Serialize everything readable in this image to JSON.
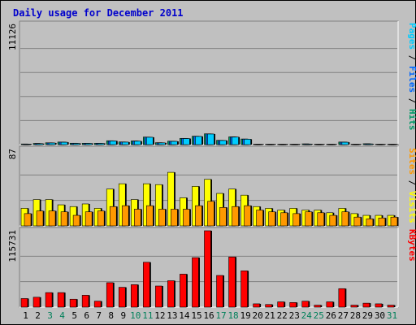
{
  "chart_data": {
    "type": "bar",
    "title": "Daily usage for December 2011",
    "categories": [
      "1",
      "2",
      "3",
      "4",
      "5",
      "6",
      "7",
      "8",
      "9",
      "10",
      "11",
      "12",
      "13",
      "14",
      "15",
      "16",
      "17",
      "18",
      "19",
      "20",
      "21",
      "22",
      "23",
      "24",
      "25",
      "26",
      "27",
      "28",
      "29",
      "30",
      "31"
    ],
    "weekend_days": [
      "3",
      "4",
      "10",
      "11",
      "17",
      "18",
      "24",
      "25",
      "31"
    ],
    "panels": [
      {
        "id": "top",
        "max_label": "11126",
        "ylim": [
          0,
          11126
        ],
        "right_label_parts": [
          "Pages",
          " / ",
          "Files",
          " / ",
          "Hits"
        ],
        "right_label_colors": [
          "#00ccff",
          "#000000",
          "#0066ff",
          "#000000",
          "#009966"
        ],
        "series": [
          {
            "name": "Hits",
            "color": "#009966",
            "values": [
              60,
              110,
              170,
              240,
              130,
              120,
              120,
              360,
              250,
              340,
              700,
              180,
              320,
              580,
              780,
              1000,
              400,
              720,
              520,
              20,
              15,
              25,
              15,
              70,
              40,
              10,
              240,
              10,
              80,
              30,
              5
            ]
          },
          {
            "name": "Files",
            "color": "#0066ff",
            "values": [
              55,
              100,
              160,
              230,
              120,
              115,
              115,
              350,
              240,
              330,
              690,
              170,
              310,
              570,
              770,
              990,
              390,
              710,
              510,
              15,
              10,
              20,
              10,
              60,
              35,
              5,
              230,
              5,
              70,
              25,
              3
            ]
          },
          {
            "name": "Pages",
            "color": "#00ccff",
            "values": [
              50,
              90,
              150,
              220,
              110,
              110,
              110,
              340,
              230,
              320,
              680,
              160,
              300,
              560,
              760,
              980,
              380,
              700,
              500,
              12,
              8,
              15,
              8,
              55,
              30,
              4,
              220,
              4,
              65,
              20,
              2
            ]
          }
        ]
      },
      {
        "id": "middle",
        "max_label": "87",
        "ylim": [
          0,
          87
        ],
        "right_label_parts": [
          "Sites",
          " / ",
          "Visits"
        ],
        "right_label_colors": [
          "#ff9900",
          "#000000",
          "#ffff00"
        ],
        "series": [
          {
            "name": "Visits",
            "color": "#ffff00",
            "values": [
              20,
              30,
              30,
              24,
              22,
              25,
              20,
              42,
              48,
              30,
              48,
              47,
              61,
              32,
              45,
              53,
              37,
              42,
              35,
              22,
              20,
              18,
              20,
              18,
              18,
              15,
              20,
              14,
              12,
              12,
              12
            ]
          },
          {
            "name": "Sites",
            "color": "#ff9900",
            "values": [
              14,
              17,
              17,
              16,
              12,
              16,
              17,
              22,
              23,
              19,
              23,
              19,
              19,
              19,
              23,
              28,
              21,
              22,
              23,
              18,
              16,
              15,
              14,
              16,
              15,
              12,
              16,
              10,
              8,
              9,
              10
            ]
          }
        ]
      },
      {
        "id": "bottom",
        "max_label": "115731",
        "ylim": [
          0,
          115731
        ],
        "right_label_parts": [
          "KBytes"
        ],
        "right_label_colors": [
          "#ff0000"
        ],
        "series": [
          {
            "name": "KBytes",
            "color": "#ff0000",
            "values": [
              13000,
              15000,
              22000,
              22000,
              12000,
              18000,
              9000,
              37000,
              30000,
              34000,
              68000,
              32000,
              40000,
              50000,
              75000,
              115731,
              48000,
              76000,
              55000,
              5000,
              4000,
              8000,
              7000,
              9000,
              3000,
              8000,
              28000,
              3000,
              6000,
              5000,
              3000
            ]
          }
        ]
      }
    ]
  }
}
